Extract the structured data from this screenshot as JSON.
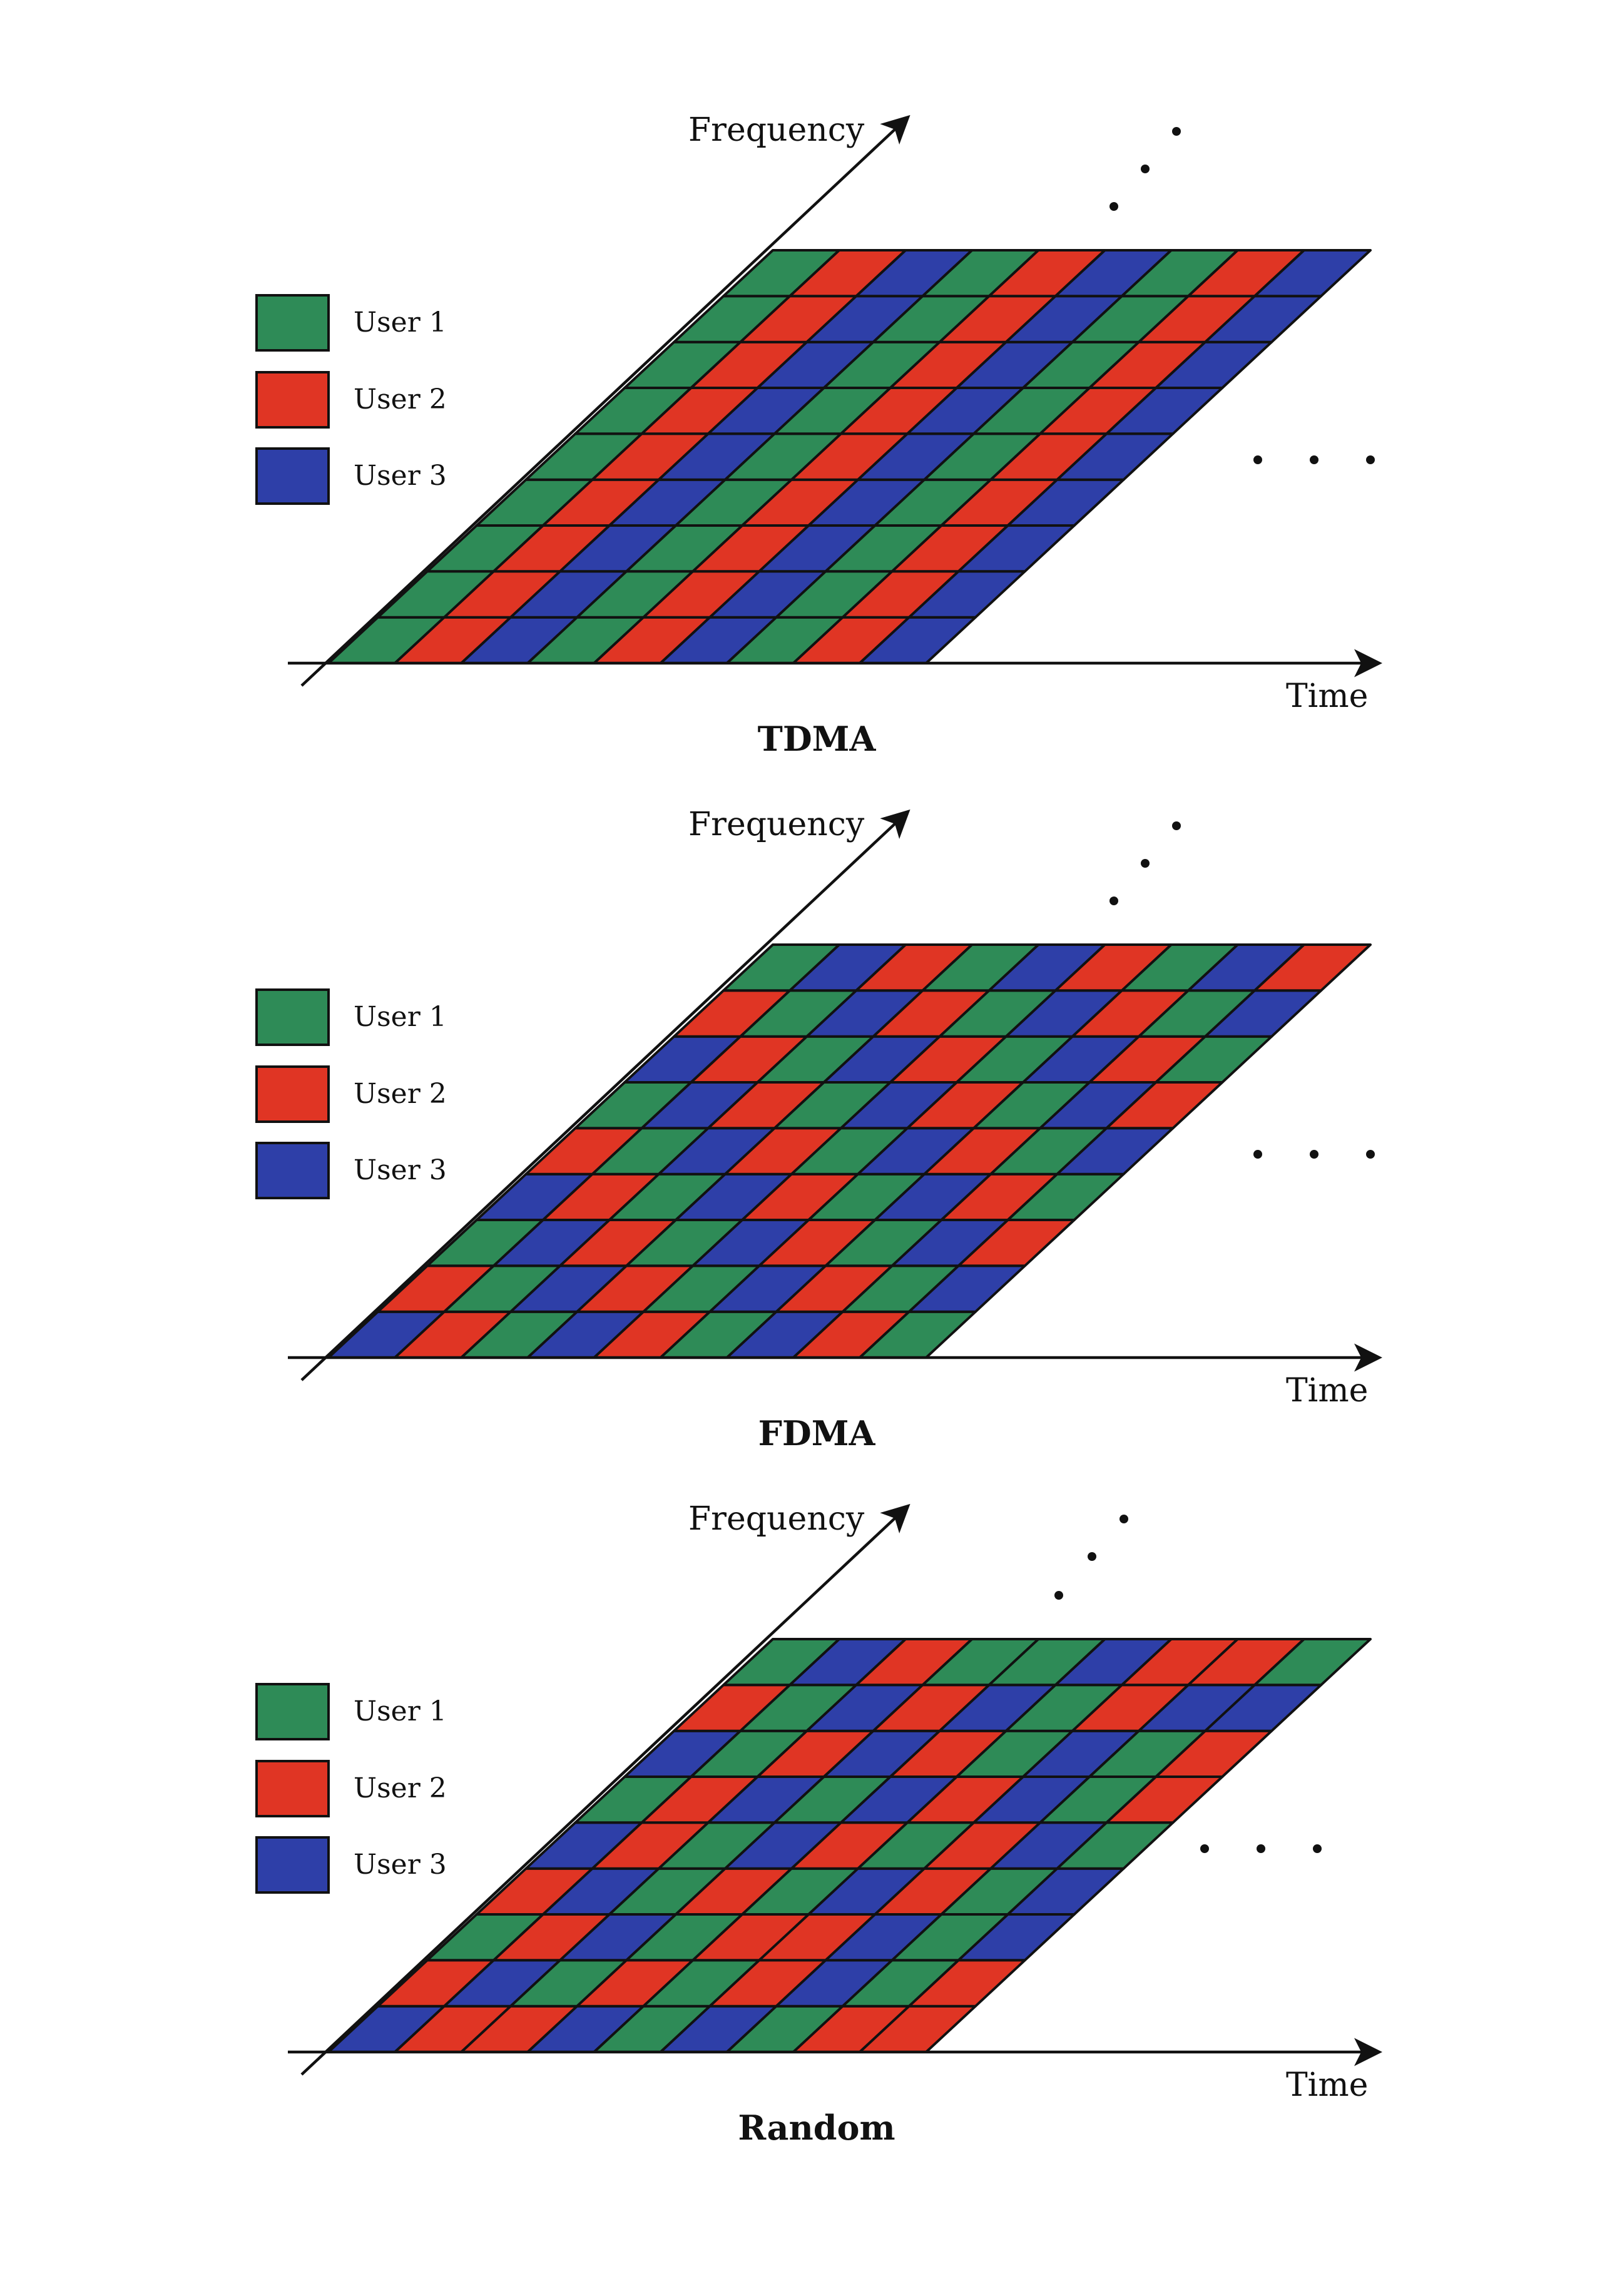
{
  "legend": {
    "items": [
      {
        "label": "User 1",
        "color": "#2e8b57"
      },
      {
        "label": "User 2",
        "color": "#e03524"
      },
      {
        "label": "User 3",
        "color": "#2e3fa8"
      }
    ]
  },
  "axes": {
    "x_label": "Time",
    "y_label": "Frequency"
  },
  "panels": [
    {
      "title": "TDMA",
      "grid": [
        [
          1,
          2,
          3,
          1,
          2,
          3,
          1,
          2,
          3
        ],
        [
          1,
          2,
          3,
          1,
          2,
          3,
          1,
          2,
          3
        ],
        [
          1,
          2,
          3,
          1,
          2,
          3,
          1,
          2,
          3
        ],
        [
          1,
          2,
          3,
          1,
          2,
          3,
          1,
          2,
          3
        ],
        [
          1,
          2,
          3,
          1,
          2,
          3,
          1,
          2,
          3
        ],
        [
          1,
          2,
          3,
          1,
          2,
          3,
          1,
          2,
          3
        ],
        [
          1,
          2,
          3,
          1,
          2,
          3,
          1,
          2,
          3
        ],
        [
          1,
          2,
          3,
          1,
          2,
          3,
          1,
          2,
          3
        ],
        [
          1,
          2,
          3,
          1,
          2,
          3,
          1,
          2,
          3
        ]
      ]
    },
    {
      "title": "FDMA",
      "grid": [
        [
          3,
          2,
          1,
          3,
          2,
          1,
          3,
          2,
          1
        ],
        [
          2,
          1,
          3,
          2,
          1,
          3,
          2,
          1,
          3
        ],
        [
          1,
          3,
          2,
          1,
          3,
          2,
          1,
          3,
          2
        ],
        [
          3,
          2,
          1,
          3,
          2,
          1,
          3,
          2,
          1
        ],
        [
          2,
          1,
          3,
          2,
          1,
          3,
          2,
          1,
          3
        ],
        [
          1,
          3,
          2,
          1,
          3,
          2,
          1,
          3,
          2
        ],
        [
          3,
          2,
          1,
          3,
          2,
          1,
          3,
          2,
          1
        ],
        [
          2,
          1,
          3,
          2,
          1,
          3,
          2,
          1,
          3
        ],
        [
          1,
          3,
          2,
          1,
          3,
          2,
          1,
          3,
          2
        ]
      ]
    },
    {
      "title": "Random",
      "grid": [
        [
          3,
          2,
          2,
          3,
          1,
          3,
          1,
          2,
          2
        ],
        [
          2,
          3,
          1,
          2,
          1,
          2,
          3,
          1,
          2
        ],
        [
          1,
          2,
          3,
          1,
          2,
          2,
          3,
          1,
          3
        ],
        [
          2,
          3,
          1,
          2,
          1,
          3,
          2,
          1,
          3
        ],
        [
          3,
          2,
          1,
          3,
          2,
          1,
          2,
          3,
          1
        ],
        [
          1,
          2,
          3,
          1,
          3,
          2,
          3,
          1,
          2
        ],
        [
          3,
          1,
          2,
          3,
          2,
          1,
          3,
          1,
          2
        ],
        [
          2,
          1,
          3,
          2,
          3,
          1,
          2,
          3,
          3
        ],
        [
          1,
          3,
          2,
          1,
          1,
          3,
          2,
          2,
          1
        ]
      ]
    }
  ]
}
